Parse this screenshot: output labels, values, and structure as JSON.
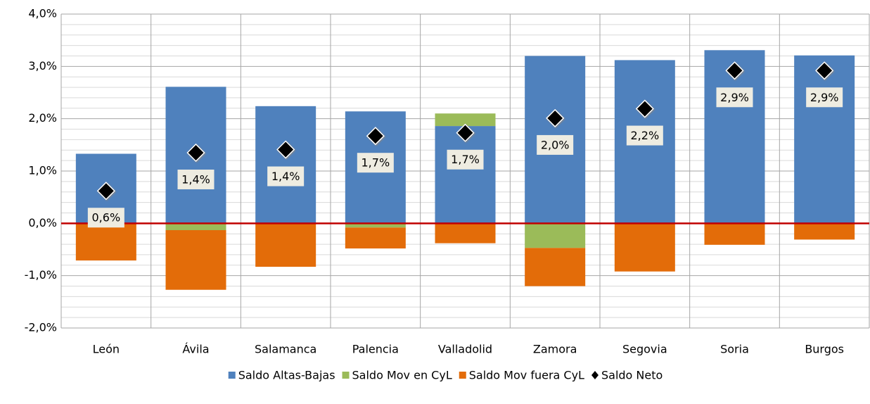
{
  "chart_data": {
    "type": "bar",
    "stacked": true,
    "categories": [
      "León",
      "Ávila",
      "Salamanca",
      "Palencia",
      "Valladolid",
      "Zamora",
      "Segovia",
      "Soria",
      "Burgos"
    ],
    "series": [
      {
        "name": "Saldo Altas-Bajas",
        "color": "#4f81bd",
        "values": [
          1.33,
          2.61,
          2.24,
          2.14,
          1.86,
          3.2,
          3.12,
          3.31,
          3.21
        ]
      },
      {
        "name": "Saldo Mov en CyL",
        "color": "#9bbb59",
        "values": [
          0,
          -0.13,
          0,
          -0.08,
          0.24,
          -0.47,
          0,
          0,
          0
        ]
      },
      {
        "name": "Saldo Mov fuera CyL",
        "color": "#e36c09",
        "values": [
          -0.71,
          -1.14,
          -0.83,
          -0.4,
          -0.38,
          -0.73,
          -0.92,
          -0.41,
          -0.31
        ]
      },
      {
        "name": "Saldo Neto",
        "type": "scatter",
        "color": "#000000",
        "values": [
          0.62,
          1.35,
          1.41,
          1.67,
          1.73,
          2.01,
          2.19,
          2.92,
          2.92
        ],
        "value_labels": [
          "0,6%",
          "1,4%",
          "1,4%",
          "1,7%",
          "1,7%",
          "2,0%",
          "2,2%",
          "2,9%",
          "2,9%"
        ]
      }
    ],
    "ylim": [
      -2,
      4
    ],
    "yticks": [
      {
        "value": -2,
        "label": "-2,0%"
      },
      {
        "value": -1,
        "label": "-1,0%"
      },
      {
        "value": 0,
        "label": "0,0%"
      },
      {
        "value": 1,
        "label": "1,0%"
      },
      {
        "value": 2,
        "label": "2,0%"
      },
      {
        "value": 3,
        "label": "3,0%"
      },
      {
        "value": 4,
        "label": "4,0%"
      }
    ],
    "grid": true,
    "legend": "bottom"
  }
}
